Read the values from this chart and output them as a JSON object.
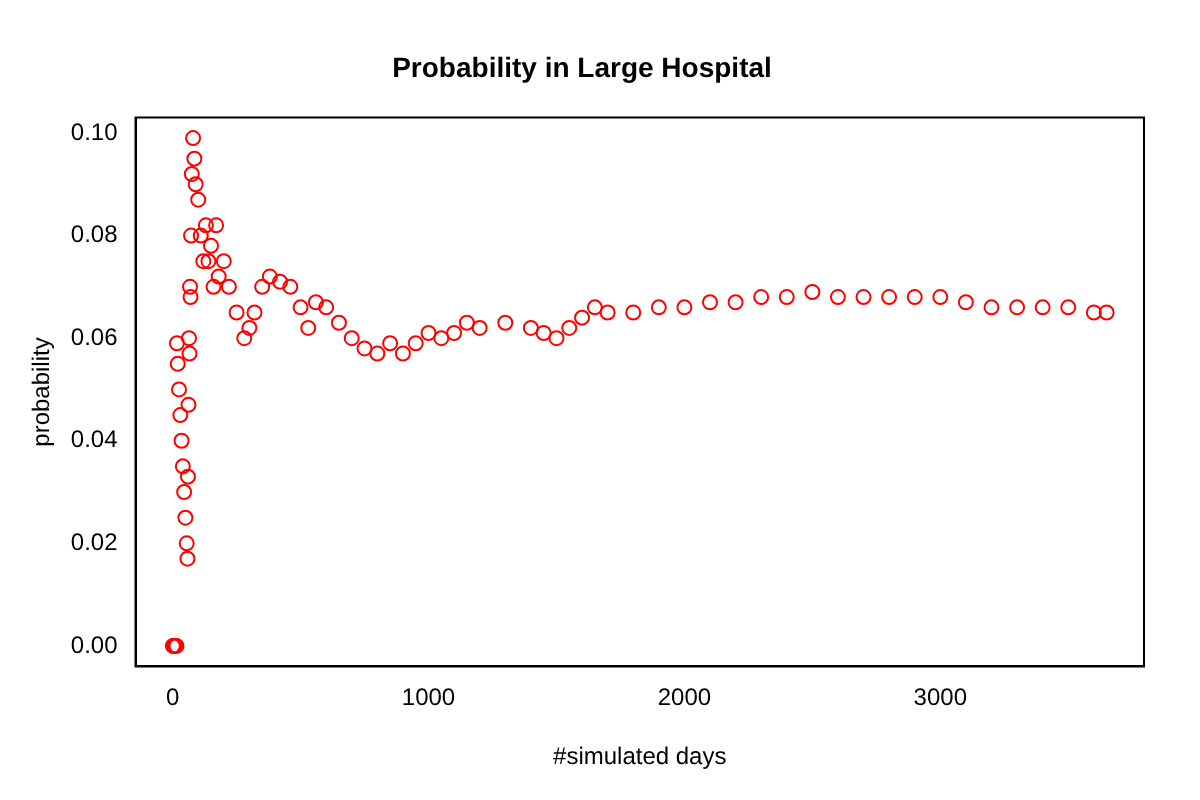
{
  "chart_data": {
    "type": "scatter",
    "title": "Probability in Large Hospital",
    "xlabel": "#simulated days",
    "ylabel": "probability",
    "x": [
      1,
      5,
      10,
      15,
      17,
      20,
      25,
      30,
      35,
      40,
      45,
      50,
      55,
      58,
      60,
      62,
      64,
      66,
      68,
      70,
      72,
      75,
      80,
      85,
      90,
      100,
      110,
      120,
      130,
      140,
      150,
      160,
      170,
      180,
      200,
      220,
      250,
      280,
      300,
      320,
      350,
      380,
      420,
      460,
      500,
      530,
      560,
      600,
      650,
      700,
      750,
      800,
      850,
      900,
      950,
      1000,
      1050,
      1100,
      1150,
      1200,
      1300,
      1400,
      1450,
      1500,
      1550,
      1600,
      1650,
      1700,
      1800,
      1900,
      2000,
      2100,
      2200,
      2300,
      2400,
      2500,
      2600,
      2700,
      2800,
      2900,
      3000,
      3100,
      3200,
      3300,
      3400,
      3500,
      3600,
      3650
    ],
    "series": [
      {
        "color": "#ff0000",
        "values": [
          0,
          0,
          0,
          0,
          0.059,
          0.055,
          0.05,
          0.045,
          0.04,
          0.035,
          0.03,
          0.025,
          0.02,
          0.017,
          0.033,
          0.047,
          0.06,
          0.057,
          0.07,
          0.068,
          0.08,
          0.092,
          0.099,
          0.095,
          0.09,
          0.087,
          0.08,
          0.075,
          0.082,
          0.075,
          0.078,
          0.07,
          0.082,
          0.072,
          0.075,
          0.07,
          0.065,
          0.06,
          0.062,
          0.065,
          0.07,
          0.072,
          0.071,
          0.07,
          0.066,
          0.062,
          0.067,
          0.066,
          0.063,
          0.06,
          0.058,
          0.057,
          0.059,
          0.057,
          0.059,
          0.061,
          0.06,
          0.061,
          0.063,
          0.062,
          0.063,
          0.062,
          0.061,
          0.06,
          0.062,
          0.064,
          0.066,
          0.065,
          0.065,
          0.066,
          0.066,
          0.067,
          0.067,
          0.068,
          0.068,
          0.069,
          0.068,
          0.068,
          0.068,
          0.068,
          0.068,
          0.067,
          0.066,
          0.066,
          0.066,
          0.066,
          0.065,
          0.065
        ]
      }
    ],
    "xlim": [
      -145,
      3796
    ],
    "xticks": [
      0,
      1000,
      2000,
      3000
    ],
    "ylim": [
      -0.004,
      0.103
    ],
    "yticks": [
      {
        "value": 0,
        "label": "0.00"
      },
      0.02,
      0.04,
      0.06,
      0.08,
      {
        "value": 0.1,
        "label": "0.10"
      }
    ],
    "marker": "circle",
    "grid": false,
    "legend": false
  }
}
